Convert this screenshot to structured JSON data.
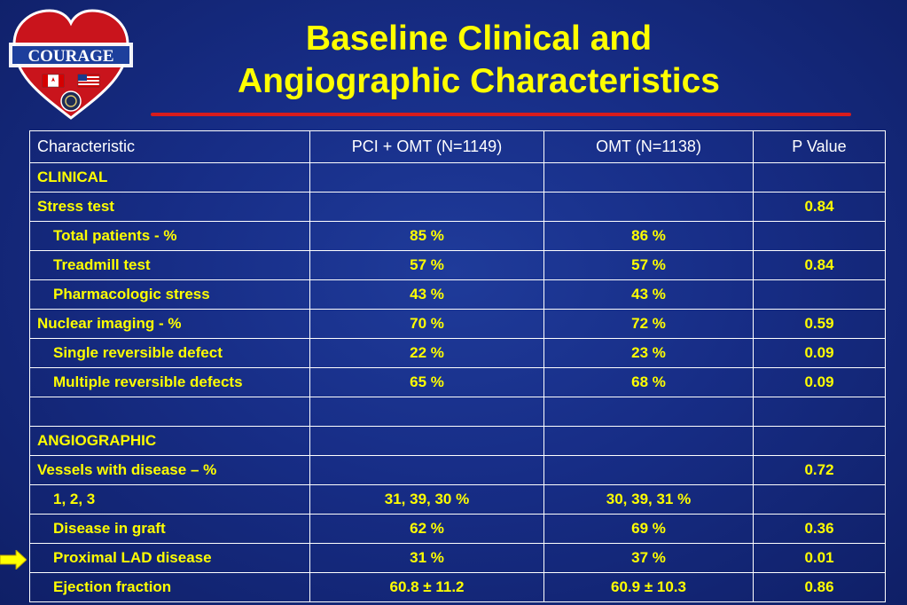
{
  "logo": {
    "text": "COURAGE",
    "icons": [
      "heart-icon",
      "canada-flag-icon",
      "us-flag-icon",
      "va-seal-icon"
    ]
  },
  "title": {
    "line1": "Baseline Clinical and",
    "line2": "Angiographic Characteristics"
  },
  "table": {
    "headers": [
      "Characteristic",
      "PCI + OMT (N=1149)",
      "OMT (N=1138)",
      "P Value"
    ],
    "rows": [
      [
        "CLINICAL",
        "",
        "",
        ""
      ],
      [
        "Stress test",
        "",
        "",
        "0.84"
      ],
      [
        "Total patients - %",
        "85 %",
        "86 %",
        ""
      ],
      [
        "Treadmill test",
        "57 %",
        "57 %",
        "0.84"
      ],
      [
        "Pharmacologic stress",
        "43 %",
        "43 %",
        ""
      ],
      [
        "Nuclear imaging - %",
        "70 %",
        "72 %",
        "0.59"
      ],
      [
        "Single reversible defect",
        "22 %",
        "23 %",
        "0.09"
      ],
      [
        "Multiple reversible defects",
        "65 %",
        "68 %",
        "0.09"
      ],
      [
        "",
        "",
        "",
        ""
      ],
      [
        "ANGIOGRAPHIC",
        "",
        "",
        ""
      ],
      [
        "Vessels with disease – %",
        "",
        "",
        "0.72"
      ],
      [
        "1, 2, 3",
        "31, 39, 30 %",
        "30, 39, 31 %",
        ""
      ],
      [
        "Disease in graft",
        "62 %",
        "69 %",
        "0.36"
      ],
      [
        "Proximal LAD disease",
        "31 %",
        "37 %",
        "0.01"
      ],
      [
        "Ejection fraction",
        "60.8 ± 11.2",
        "60.9 ± 10.3",
        "0.86"
      ]
    ]
  },
  "colors": {
    "background": "#172d86",
    "title": "#ffff00",
    "rule": "#d81c1c",
    "table_text": "#ffff00",
    "header_text": "#ffffff",
    "arrow": "#ffff00"
  },
  "arrow_icon": "right-arrow-icon"
}
